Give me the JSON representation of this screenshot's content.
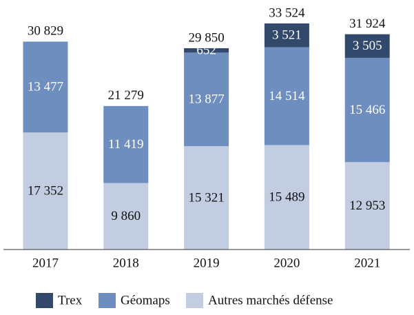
{
  "chart_data": {
    "type": "stacked-bar",
    "categories": [
      "2017",
      "2018",
      "2019",
      "2020",
      "2021"
    ],
    "series": [
      {
        "name": "Trex",
        "color": "#33496c",
        "values": [
          null,
          null,
          652,
          3521,
          3505
        ],
        "value_labels": [
          null,
          null,
          "652",
          "3 521",
          "3 505"
        ]
      },
      {
        "name": "Géomaps",
        "color": "#6e8ebf",
        "values": [
          13477,
          11419,
          13877,
          14514,
          15466
        ],
        "value_labels": [
          "13 477",
          "11 419",
          "13 877",
          "14 514",
          "15 466"
        ]
      },
      {
        "name": "Autres marchés défense",
        "color": "#c3cde1",
        "values": [
          17352,
          9860,
          15321,
          15489,
          12953
        ],
        "value_labels": [
          "17 352",
          "9 860",
          "15 321",
          "15 489",
          "12 953"
        ]
      }
    ],
    "totals": {
      "values": [
        30829,
        21279,
        29850,
        33524,
        31924
      ],
      "value_labels": [
        "30 829",
        "21 279",
        "29 850",
        "33 524",
        "31 924"
      ]
    },
    "legend": "bottom"
  }
}
